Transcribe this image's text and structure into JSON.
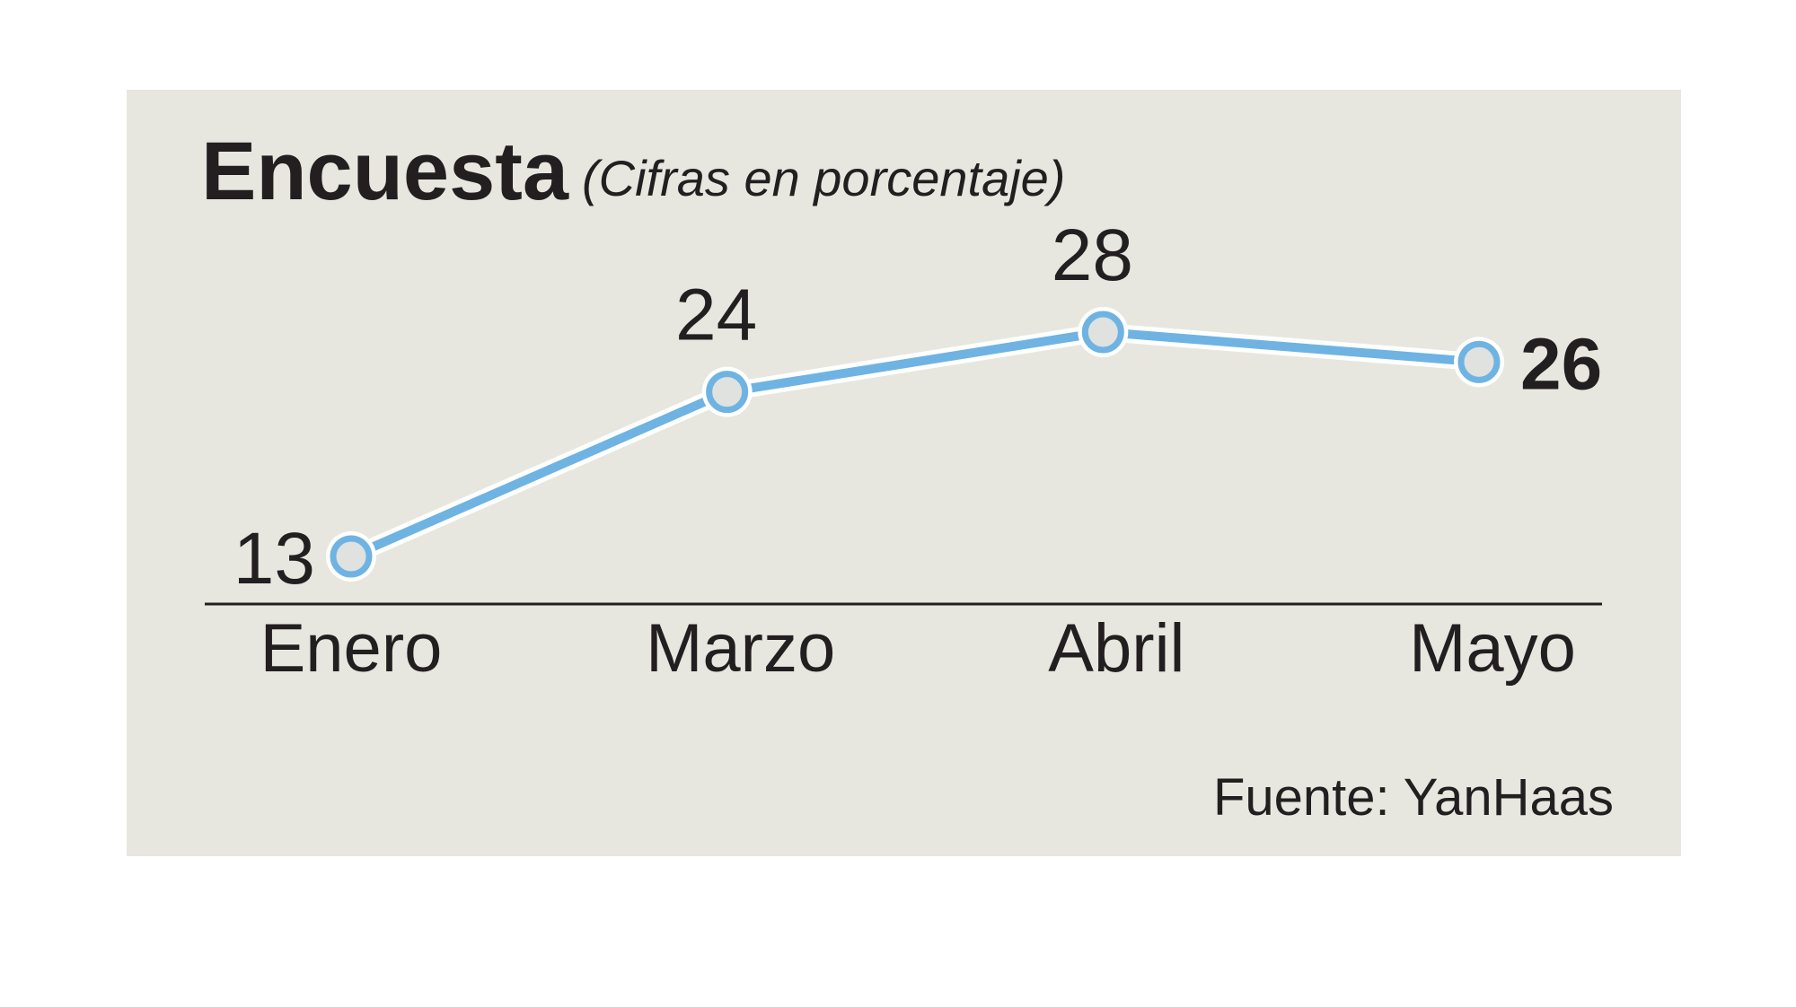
{
  "chart_data": {
    "type": "line",
    "title": "Encuesta",
    "subtitle": "(Cifras en porcentaje)",
    "categories": [
      "Enero",
      "Marzo",
      "Abril",
      "Mayo"
    ],
    "series": [
      {
        "name": "Encuesta",
        "color": "#6fb3e3",
        "values": [
          13,
          24,
          28,
          26
        ]
      }
    ],
    "source": "Fuente: YanHaas"
  }
}
